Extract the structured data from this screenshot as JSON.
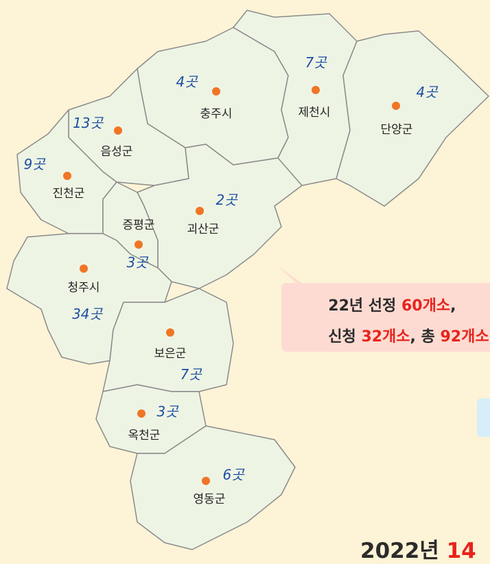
{
  "regions": [
    {
      "name": "충주시",
      "count": "4곳"
    },
    {
      "name": "제천시",
      "count": "7곳"
    },
    {
      "name": "단양군",
      "count": "4곳"
    },
    {
      "name": "음성군",
      "count": "13곳"
    },
    {
      "name": "진천군",
      "count": "9곳"
    },
    {
      "name": "괴산군",
      "count": "2곳"
    },
    {
      "name": "증평군",
      "count": "3곳"
    },
    {
      "name": "청주시",
      "count": "34곳"
    },
    {
      "name": "보은군",
      "count": "7곳"
    },
    {
      "name": "옥천군",
      "count": "3곳"
    },
    {
      "name": "영동군",
      "count": "6곳"
    }
  ],
  "callout": {
    "line1": [
      "22년 선정 ",
      "60개소",
      ","
    ],
    "line2": [
      "신청 ",
      "32개소",
      ", 총 ",
      "92개소"
    ]
  },
  "footer": [
    "2022년 ",
    "14"
  ]
}
